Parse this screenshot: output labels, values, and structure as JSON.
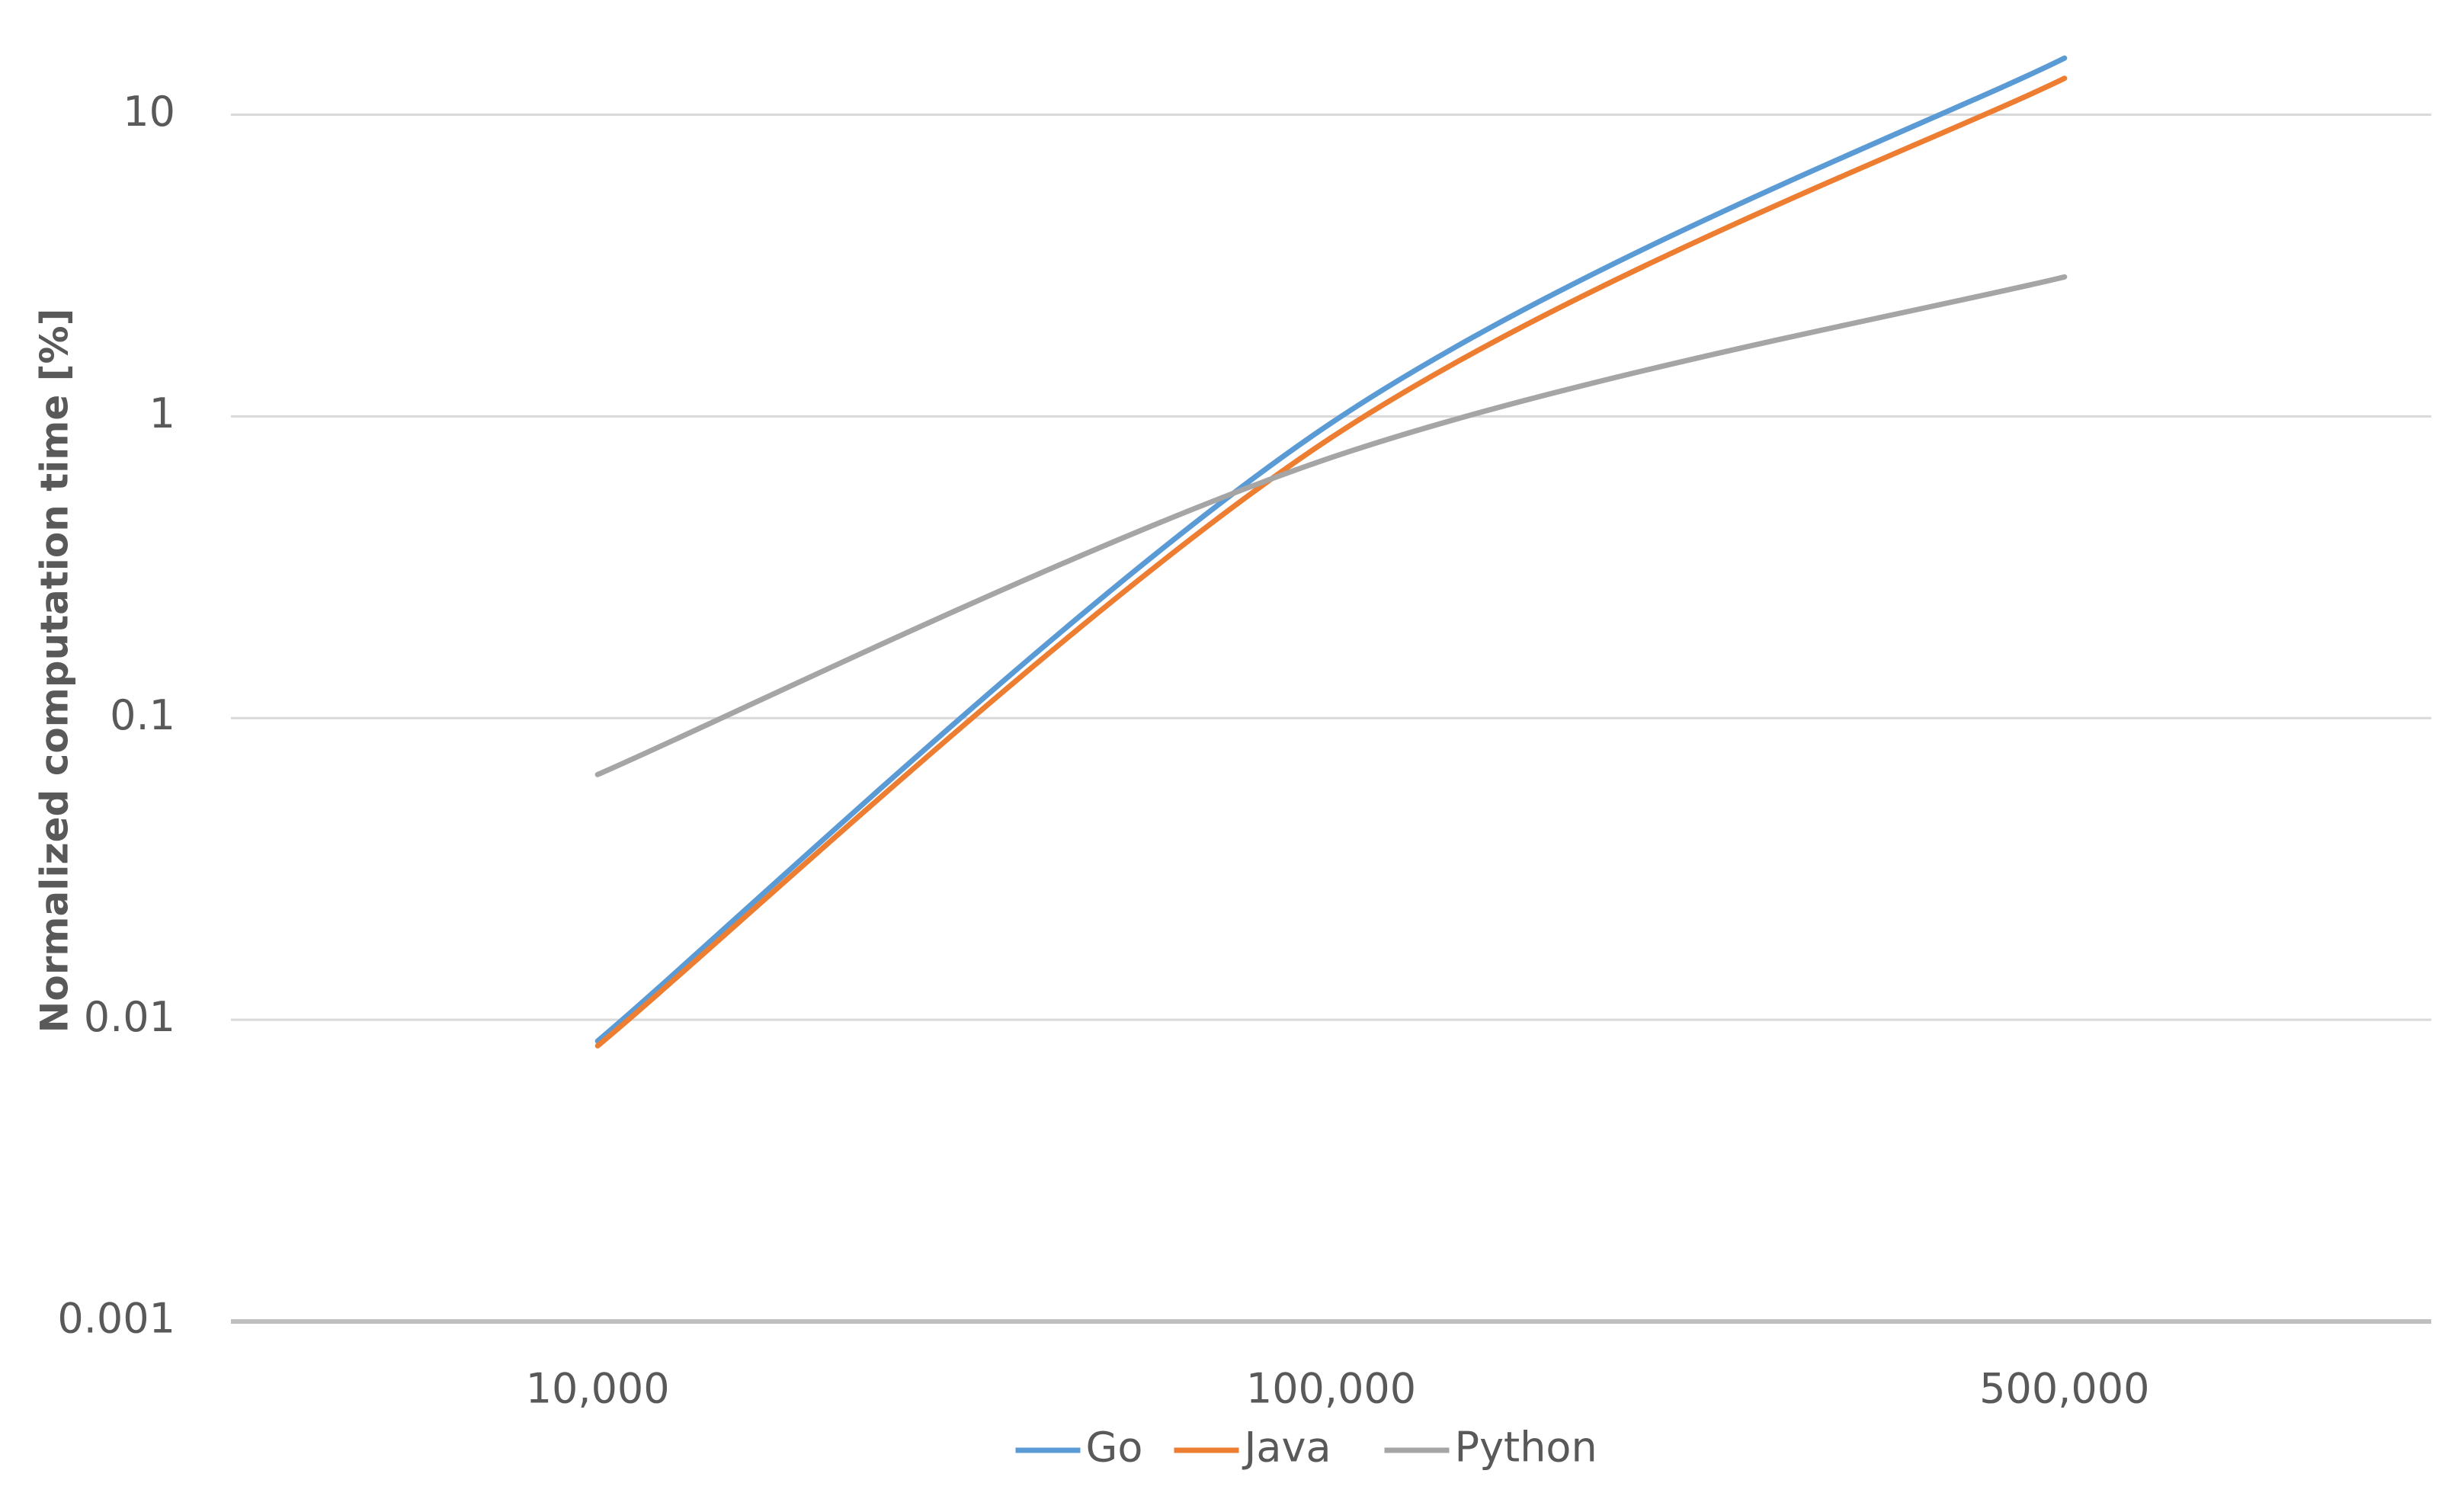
{
  "chart_data": {
    "type": "line",
    "y_label": "Normalized computation time [%]",
    "categories": [
      "10,000",
      "100,000",
      "500,000"
    ],
    "series": [
      {
        "name": "Go",
        "color": "#5b9bd5",
        "values": [
          0.0085,
          0.95,
          15.4
        ]
      },
      {
        "name": "Java",
        "color": "#ed7d31",
        "values": [
          0.0082,
          0.85,
          13.2
        ]
      },
      {
        "name": "Python",
        "color": "#a5a5a5",
        "values": [
          0.065,
          0.73,
          2.9
        ]
      }
    ],
    "log_scale": true,
    "smooth": true,
    "grid": true,
    "ylim": [
      0.001,
      24
    ],
    "yticks": [
      0.001,
      0.01,
      0.1,
      1,
      10
    ],
    "legend": "bottom"
  }
}
